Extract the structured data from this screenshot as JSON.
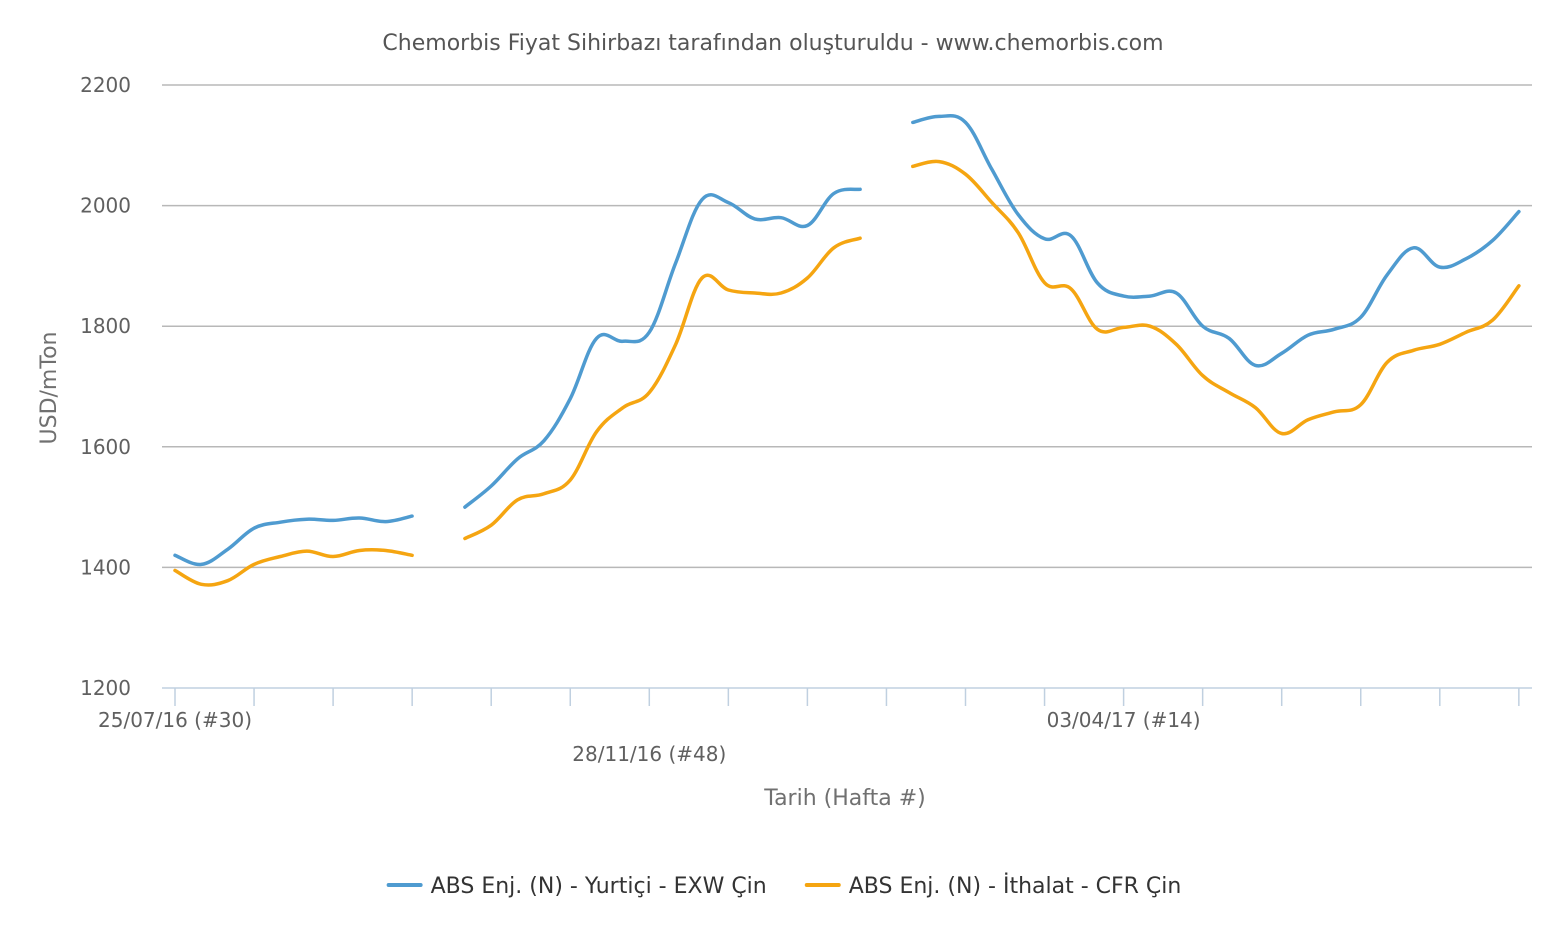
{
  "chart_data": {
    "type": "line",
    "title": "Chemorbis Fiyat Sihirbazı tarafından oluşturuldu - www.chemorbis.com",
    "xlabel": "Tarih (Hafta #)",
    "ylabel": "USD/mTon",
    "ylim": [
      1200,
      2200
    ],
    "yticks": [
      1200,
      1400,
      1600,
      1800,
      2000,
      2200
    ],
    "grid": true,
    "legend_position": "bottom-center",
    "x_labels": [
      {
        "label": "25/07/16 (#30)",
        "week_index": 0,
        "row": 0
      },
      {
        "label": "28/11/16 (#48)",
        "week_index": 18,
        "row": 1
      },
      {
        "label": "03/04/17 (#14)",
        "week_index": 36,
        "row": 0
      }
    ],
    "x_tick_weeks": [
      0,
      3,
      6,
      9,
      12,
      15,
      18,
      21,
      24,
      27,
      30,
      33,
      36,
      39,
      42,
      45,
      48,
      51,
      54,
      57
    ],
    "x_range_weeks": [
      0,
      57.5
    ],
    "series": [
      {
        "name": "ABS Enj. (N) - Yurtiçi - EXW Çin",
        "color": "#4f9bd0",
        "segments": [
          [
            [
              0,
              1420
            ],
            [
              1,
              1405
            ],
            [
              2,
              1430
            ],
            [
              3,
              1465
            ],
            [
              4,
              1475
            ],
            [
              5,
              1480
            ],
            [
              6,
              1478
            ],
            [
              7,
              1482
            ],
            [
              8,
              1476
            ],
            [
              9,
              1485
            ]
          ],
          [
            [
              11,
              1500
            ],
            [
              12,
              1535
            ],
            [
              13,
              1580
            ],
            [
              14,
              1610
            ],
            [
              15,
              1680
            ],
            [
              16,
              1780
            ],
            [
              17,
              1775
            ],
            [
              18,
              1790
            ],
            [
              19,
              1905
            ],
            [
              20,
              2010
            ],
            [
              21,
              2005
            ],
            [
              22,
              1978
            ],
            [
              23,
              1980
            ],
            [
              24,
              1967
            ],
            [
              25,
              2020
            ],
            [
              26,
              2027
            ]
          ],
          [
            [
              28,
              2138
            ],
            [
              29,
              2148
            ],
            [
              30,
              2138
            ],
            [
              31,
              2060
            ],
            [
              32,
              1985
            ],
            [
              33,
              1945
            ],
            [
              34,
              1950
            ],
            [
              35,
              1872
            ],
            [
              36,
              1850
            ],
            [
              37,
              1850
            ],
            [
              38,
              1855
            ],
            [
              39,
              1800
            ],
            [
              40,
              1780
            ],
            [
              41,
              1735
            ],
            [
              42,
              1755
            ],
            [
              43,
              1785
            ],
            [
              44,
              1795
            ],
            [
              45,
              1815
            ],
            [
              46,
              1885
            ],
            [
              47,
              1930
            ],
            [
              48,
              1898
            ],
            [
              49,
              1912
            ],
            [
              50,
              1942
            ],
            [
              51,
              1990
            ]
          ]
        ]
      },
      {
        "name": "ABS Enj. (N) - İthalat - CFR Çin",
        "color": "#f5a511",
        "segments": [
          [
            [
              0,
              1395
            ],
            [
              1,
              1372
            ],
            [
              2,
              1378
            ],
            [
              3,
              1405
            ],
            [
              4,
              1418
            ],
            [
              5,
              1427
            ],
            [
              6,
              1418
            ],
            [
              7,
              1428
            ],
            [
              8,
              1428
            ],
            [
              9,
              1420
            ]
          ],
          [
            [
              11,
              1448
            ],
            [
              12,
              1470
            ],
            [
              13,
              1512
            ],
            [
              14,
              1522
            ],
            [
              15,
              1545
            ],
            [
              16,
              1625
            ],
            [
              17,
              1665
            ],
            [
              18,
              1690
            ],
            [
              19,
              1770
            ],
            [
              20,
              1880
            ],
            [
              21,
              1860
            ],
            [
              22,
              1855
            ],
            [
              23,
              1855
            ],
            [
              24,
              1880
            ],
            [
              25,
              1930
            ],
            [
              26,
              1946
            ]
          ],
          [
            [
              28,
              2065
            ],
            [
              29,
              2073
            ],
            [
              30,
              2052
            ],
            [
              31,
              2005
            ],
            [
              32,
              1955
            ],
            [
              33,
              1872
            ],
            [
              34,
              1862
            ],
            [
              35,
              1795
            ],
            [
              36,
              1798
            ],
            [
              37,
              1800
            ],
            [
              38,
              1770
            ],
            [
              39,
              1718
            ],
            [
              40,
              1690
            ],
            [
              41,
              1665
            ],
            [
              42,
              1622
            ],
            [
              43,
              1645
            ],
            [
              44,
              1658
            ],
            [
              45,
              1670
            ],
            [
              46,
              1740
            ],
            [
              47,
              1760
            ],
            [
              48,
              1770
            ],
            [
              49,
              1790
            ],
            [
              50,
              1810
            ],
            [
              51,
              1867
            ]
          ]
        ]
      }
    ]
  }
}
